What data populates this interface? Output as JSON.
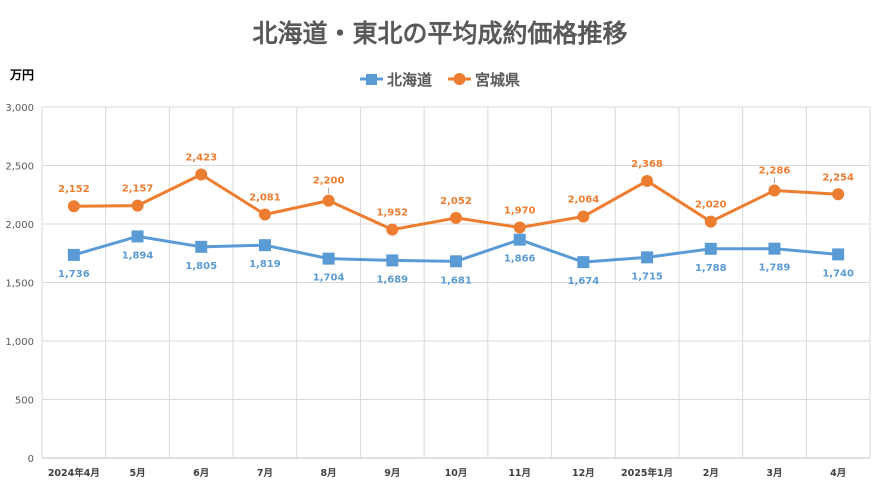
{
  "chart_data": {
    "type": "line",
    "title": "北海道・東北の平均成約価格推移",
    "unit_label": "万円",
    "categories": [
      "2024年4月",
      "5月",
      "6月",
      "7月",
      "8月",
      "9月",
      "10月",
      "11月",
      "12月",
      "2025年1月",
      "2月",
      "3月",
      "4月"
    ],
    "ylim": [
      0,
      3000
    ],
    "yticks": [
      0,
      500,
      1000,
      1500,
      2000,
      2500,
      3000
    ],
    "ytick_labels": [
      "0",
      "500",
      "1,000",
      "1,500",
      "2,000",
      "2,500",
      "3,000"
    ],
    "grid": true,
    "legend_position": "top-center",
    "series": [
      {
        "name": "北海道",
        "color": "#5b9bd5",
        "marker": "square",
        "label_position": "below",
        "values": [
          1736,
          1894,
          1805,
          1819,
          1704,
          1689,
          1681,
          1866,
          1674,
          1715,
          1788,
          1789,
          1740
        ],
        "labels": [
          "1,736",
          "1,894",
          "1,805",
          "1,819",
          "1,704",
          "1,689",
          "1,681",
          "1,866",
          "1,674",
          "1,715",
          "1,788",
          "1,789",
          "1,740"
        ]
      },
      {
        "name": "宮城県",
        "color": "#ed7d31",
        "marker": "circle",
        "label_position": "above",
        "values": [
          2152,
          2157,
          2423,
          2081,
          2200,
          1952,
          2052,
          1970,
          2064,
          2368,
          2020,
          2286,
          2254
        ],
        "labels": [
          "2,152",
          "2,157",
          "2,423",
          "2,081",
          "2,200",
          "1,952",
          "2,052",
          "1,970",
          "2,064",
          "2,368",
          "2,020",
          "2,286",
          "2,254"
        ]
      }
    ]
  }
}
